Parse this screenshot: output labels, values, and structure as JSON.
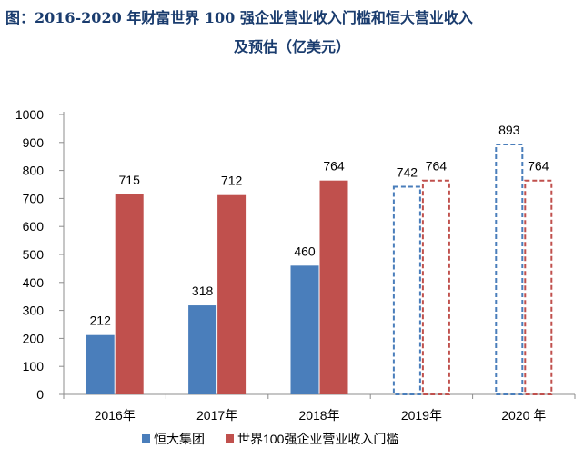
{
  "title": {
    "line1": "图：2016-2020 年财富世界 100 强企业营业收入门槛和恒大营业收入",
    "line2": "及预估（亿美元）"
  },
  "chart_data": {
    "type": "bar",
    "categories": [
      "2016年",
      "2017年",
      "2018年",
      "2019年",
      "2020 年"
    ],
    "ylim": [
      0,
      1000
    ],
    "yticks": [
      0,
      100,
      200,
      300,
      400,
      500,
      600,
      700,
      800,
      900,
      1000
    ],
    "grid": false,
    "legend_position": "bottom",
    "series": [
      {
        "name": "恒大集团",
        "color": "#4a7ebb",
        "values": [
          212,
          318,
          460,
          742,
          893
        ],
        "labels": [
          "212",
          "318",
          "460",
          "742",
          "893"
        ],
        "estimated": [
          false,
          false,
          false,
          true,
          true
        ]
      },
      {
        "name": "世界100强企业营业收入门槛",
        "color": "#c0504d",
        "values": [
          715,
          712,
          764,
          764,
          764
        ],
        "labels": [
          "715",
          "712",
          "764",
          "764",
          "764"
        ],
        "estimated": [
          false,
          false,
          false,
          true,
          true
        ]
      }
    ]
  }
}
